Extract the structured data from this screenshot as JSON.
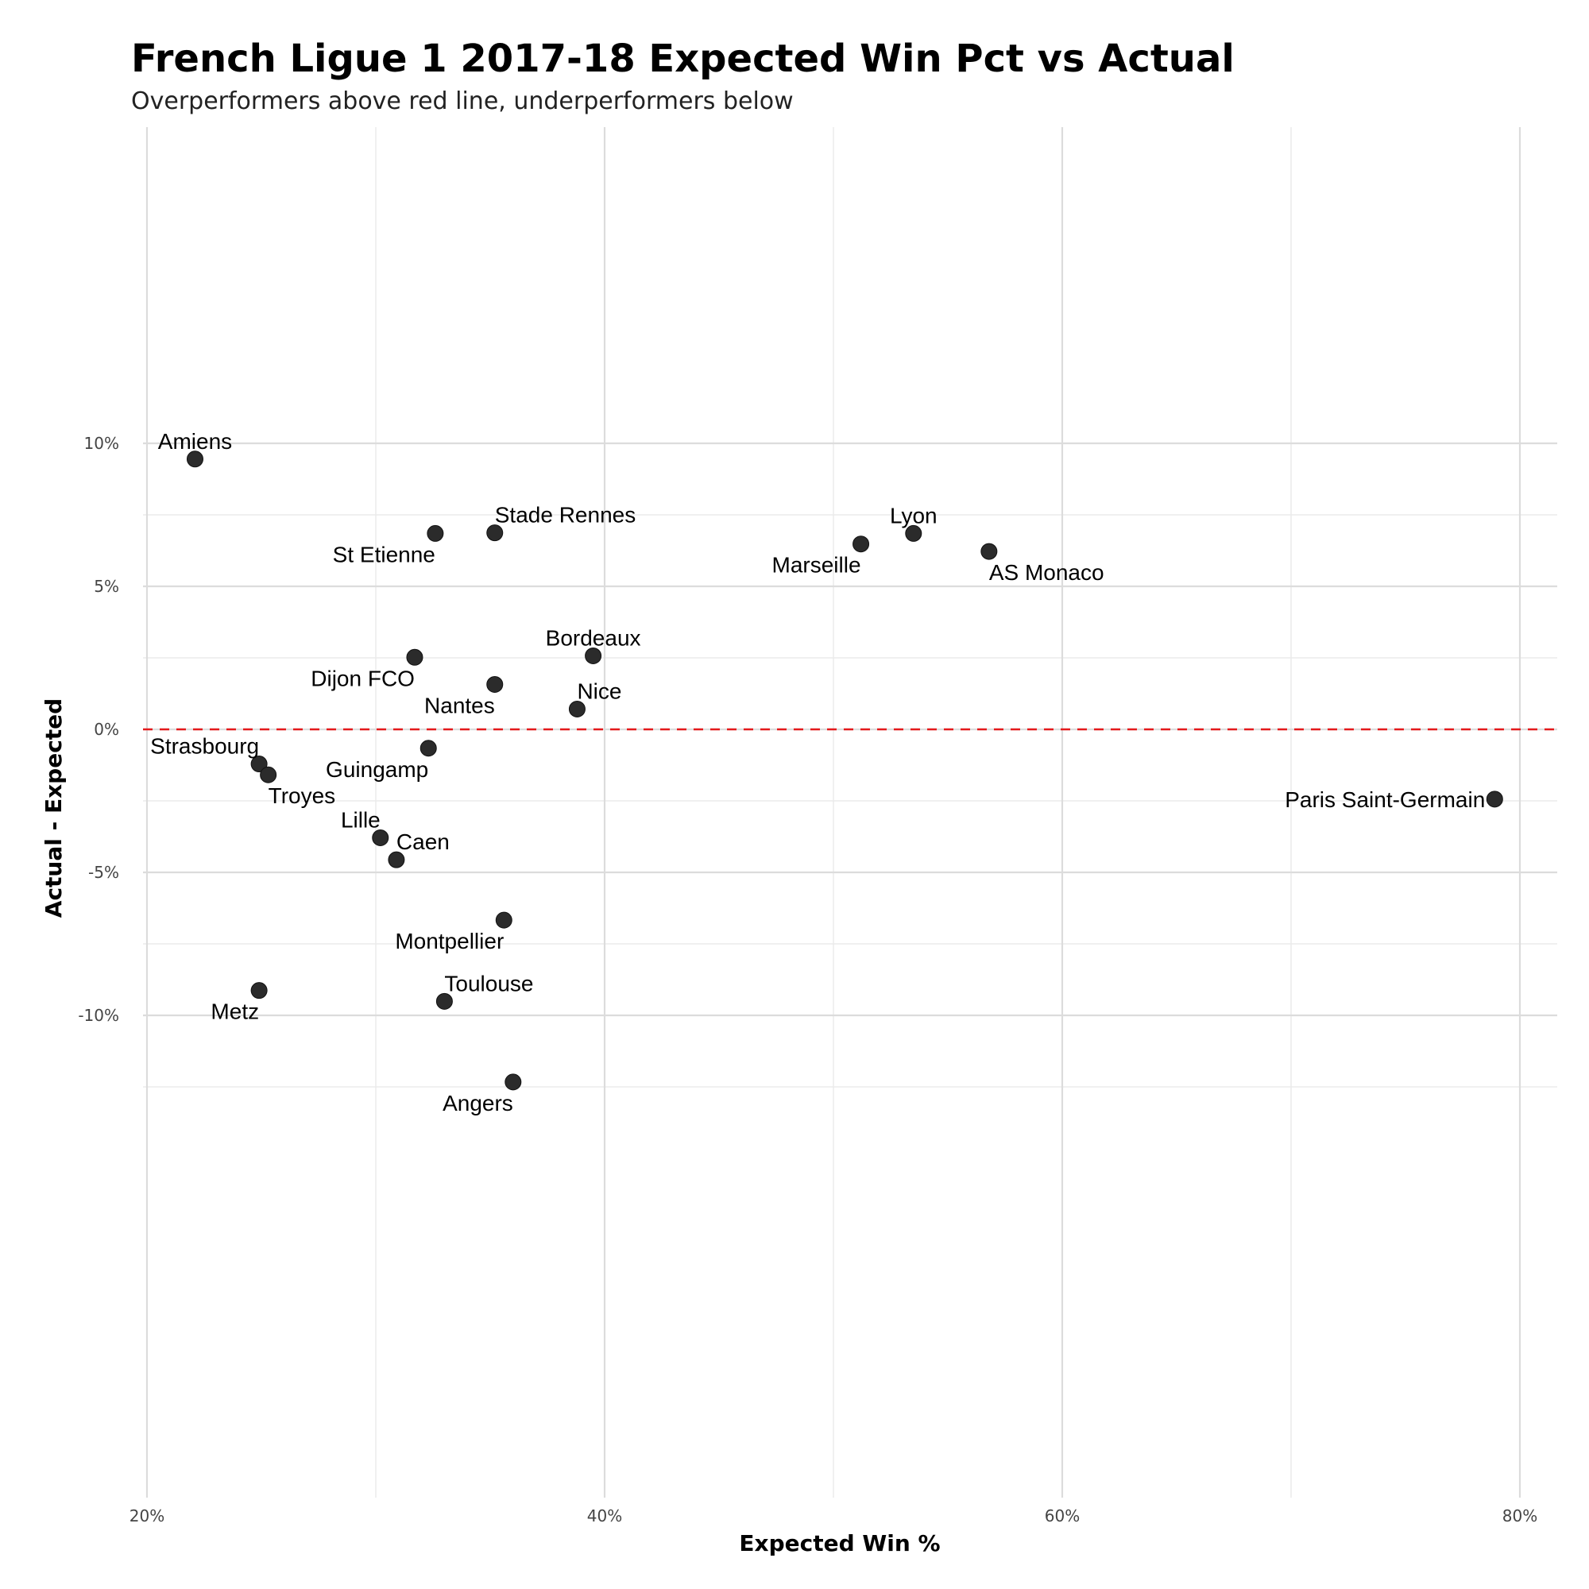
{
  "chart_data": {
    "type": "scatter",
    "title": "French Ligue 1 2017-18 Expected Win Pct vs Actual",
    "subtitle": "Overperformers above red line, underperformers below",
    "xlabel": "Expected Win %",
    "ylabel": "Actual - Expected",
    "xlim": [
      0.2,
      0.81
    ],
    "ylim": [
      -0.13,
      0.105
    ],
    "x_ticks": [
      0.2,
      0.4,
      0.6,
      0.8
    ],
    "x_tick_labels": [
      "20%",
      "40%",
      "60%",
      "80%"
    ],
    "y_ticks": [
      -0.1,
      -0.05,
      0.0,
      0.05,
      0.1
    ],
    "y_tick_labels": [
      "-10%",
      "-5%",
      "0%",
      "5%",
      "10%"
    ],
    "grid": true,
    "reference_line": {
      "y": 0,
      "color": "#e41a1c",
      "style": "dashed"
    },
    "point_color": "#2b2b2b",
    "points": [
      {
        "label": "Amiens",
        "x": 0.221,
        "y": 0.0945,
        "pos": "above"
      },
      {
        "label": "St Etienne",
        "x": 0.326,
        "y": 0.0685,
        "pos": "below-left"
      },
      {
        "label": "Stade Rennes",
        "x": 0.352,
        "y": 0.0687,
        "pos": "above-right"
      },
      {
        "label": "Lyon",
        "x": 0.535,
        "y": 0.0685,
        "pos": "above"
      },
      {
        "label": "Marseille",
        "x": 0.512,
        "y": 0.0648,
        "pos": "below-left"
      },
      {
        "label": "AS Monaco",
        "x": 0.568,
        "y": 0.0622,
        "pos": "below-right"
      },
      {
        "label": "Bordeaux",
        "x": 0.395,
        "y": 0.0257,
        "pos": "above"
      },
      {
        "label": "Dijon FCO",
        "x": 0.317,
        "y": 0.0252,
        "pos": "below-left"
      },
      {
        "label": "Nantes",
        "x": 0.352,
        "y": 0.0157,
        "pos": "below-left"
      },
      {
        "label": "Nice",
        "x": 0.388,
        "y": 0.0071,
        "pos": "above-right"
      },
      {
        "label": "Guingamp",
        "x": 0.323,
        "y": -0.0066,
        "pos": "below-left"
      },
      {
        "label": "Strasbourg",
        "x": 0.249,
        "y": -0.0121,
        "pos": "above-left"
      },
      {
        "label": "Troyes",
        "x": 0.253,
        "y": -0.0159,
        "pos": "below-right"
      },
      {
        "label": "Paris Saint-Germain",
        "x": 0.789,
        "y": -0.0244,
        "pos": "left"
      },
      {
        "label": "Lille",
        "x": 0.302,
        "y": -0.0379,
        "pos": "above-left"
      },
      {
        "label": "Caen",
        "x": 0.309,
        "y": -0.0456,
        "pos": "above-right"
      },
      {
        "label": "Montpellier",
        "x": 0.356,
        "y": -0.0667,
        "pos": "below-left"
      },
      {
        "label": "Metz",
        "x": 0.249,
        "y": -0.0913,
        "pos": "below-left"
      },
      {
        "label": "Toulouse",
        "x": 0.33,
        "y": -0.0951,
        "pos": "above-right"
      },
      {
        "label": "Angers",
        "x": 0.36,
        "y": -0.1233,
        "pos": "below-left"
      }
    ]
  }
}
